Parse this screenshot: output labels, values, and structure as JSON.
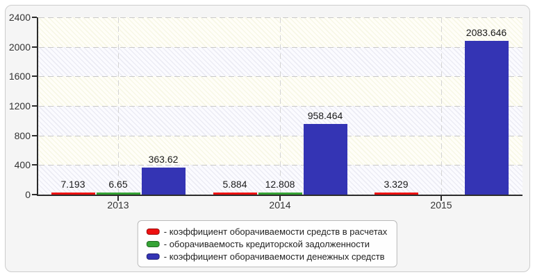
{
  "page": {
    "background": "#ffffff",
    "card_background": "#f5f5f5",
    "card_border_color": "#cccccc"
  },
  "chart_data": {
    "type": "bar",
    "title": "",
    "xlabel": "",
    "ylabel": "",
    "categories": [
      "2013",
      "2014",
      "2015"
    ],
    "series": [
      {
        "name": "коэффициент оборачиваемости средств в расчетах",
        "color": "#ee1111",
        "values": [
          7.193,
          5.884,
          3.329
        ]
      },
      {
        "name": "оборачиваемость кредиторской задолженности",
        "color": "#35a335",
        "values": [
          6.65,
          12.808,
          null
        ]
      },
      {
        "name": "коэффициент оборачиваемости денежных средств",
        "color": "#3434b4",
        "values": [
          363.62,
          958.464,
          2083.646
        ]
      }
    ],
    "value_labels": [
      [
        "7.193",
        "5.884",
        "3.329"
      ],
      [
        "6.65",
        "12.808",
        ""
      ],
      [
        "363.62",
        "958.464",
        "2083.646"
      ]
    ],
    "ylim": [
      0,
      2400
    ],
    "yticks": [
      "0",
      "400",
      "800",
      "1200",
      "1600",
      "2000",
      "2400"
    ],
    "grid": "dashed horizontal gridlines at each y tick and dashed vertical gridlines at each category center",
    "legend_position": "bottom-center",
    "value_labels_shown": true
  },
  "legend": {
    "items": [
      {
        "color": "#ee1111",
        "label": "- коэффициент оборачиваемости средств в расчетах"
      },
      {
        "color": "#35a335",
        "label": "- оборачиваемость кредиторской задолженности"
      },
      {
        "color": "#3434b4",
        "label": "- коэффициент оборачиваемости денежных средств"
      }
    ]
  }
}
